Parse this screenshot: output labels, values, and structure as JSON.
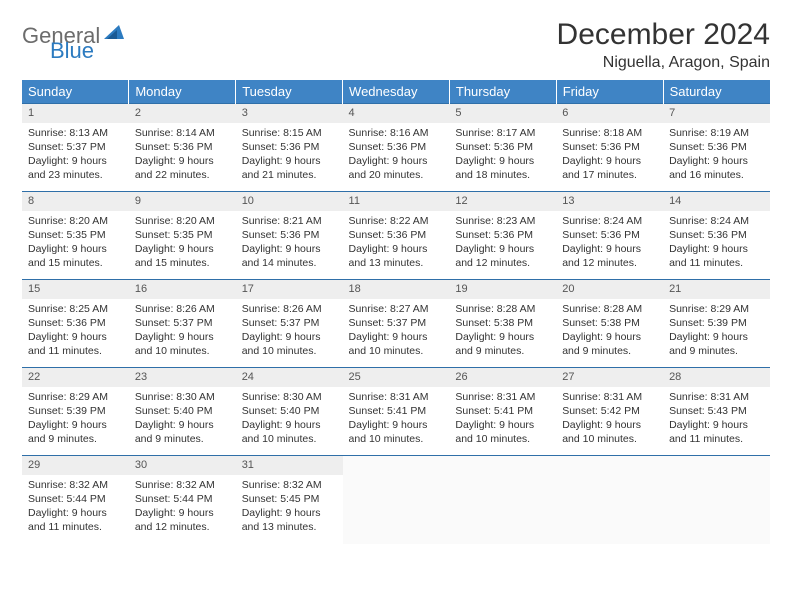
{
  "brand": {
    "part1": "General",
    "part2": "Blue"
  },
  "title": "December 2024",
  "location": "Niguella, Aragon, Spain",
  "colors": {
    "header_bg": "#3f84c5",
    "header_text": "#ffffff",
    "row_border": "#2f6fa8",
    "daynum_bg": "#eeeeee",
    "text": "#333333",
    "logo_gray": "#6c6c6c",
    "logo_blue": "#2c7bc0",
    "page_bg": "#ffffff"
  },
  "typography": {
    "title_fontsize": 30,
    "location_fontsize": 16,
    "dayhead_fontsize": 13,
    "cell_fontsize": 10.5
  },
  "week_headers": [
    "Sunday",
    "Monday",
    "Tuesday",
    "Wednesday",
    "Thursday",
    "Friday",
    "Saturday"
  ],
  "labels": {
    "sunrise": "Sunrise:",
    "sunset": "Sunset:",
    "daylight": "Daylight:"
  },
  "days": [
    {
      "n": 1,
      "sunrise": "8:13 AM",
      "sunset": "5:37 PM",
      "daylight": "9 hours and 23 minutes."
    },
    {
      "n": 2,
      "sunrise": "8:14 AM",
      "sunset": "5:36 PM",
      "daylight": "9 hours and 22 minutes."
    },
    {
      "n": 3,
      "sunrise": "8:15 AM",
      "sunset": "5:36 PM",
      "daylight": "9 hours and 21 minutes."
    },
    {
      "n": 4,
      "sunrise": "8:16 AM",
      "sunset": "5:36 PM",
      "daylight": "9 hours and 20 minutes."
    },
    {
      "n": 5,
      "sunrise": "8:17 AM",
      "sunset": "5:36 PM",
      "daylight": "9 hours and 18 minutes."
    },
    {
      "n": 6,
      "sunrise": "8:18 AM",
      "sunset": "5:36 PM",
      "daylight": "9 hours and 17 minutes."
    },
    {
      "n": 7,
      "sunrise": "8:19 AM",
      "sunset": "5:36 PM",
      "daylight": "9 hours and 16 minutes."
    },
    {
      "n": 8,
      "sunrise": "8:20 AM",
      "sunset": "5:35 PM",
      "daylight": "9 hours and 15 minutes."
    },
    {
      "n": 9,
      "sunrise": "8:20 AM",
      "sunset": "5:35 PM",
      "daylight": "9 hours and 15 minutes."
    },
    {
      "n": 10,
      "sunrise": "8:21 AM",
      "sunset": "5:36 PM",
      "daylight": "9 hours and 14 minutes."
    },
    {
      "n": 11,
      "sunrise": "8:22 AM",
      "sunset": "5:36 PM",
      "daylight": "9 hours and 13 minutes."
    },
    {
      "n": 12,
      "sunrise": "8:23 AM",
      "sunset": "5:36 PM",
      "daylight": "9 hours and 12 minutes."
    },
    {
      "n": 13,
      "sunrise": "8:24 AM",
      "sunset": "5:36 PM",
      "daylight": "9 hours and 12 minutes."
    },
    {
      "n": 14,
      "sunrise": "8:24 AM",
      "sunset": "5:36 PM",
      "daylight": "9 hours and 11 minutes."
    },
    {
      "n": 15,
      "sunrise": "8:25 AM",
      "sunset": "5:36 PM",
      "daylight": "9 hours and 11 minutes."
    },
    {
      "n": 16,
      "sunrise": "8:26 AM",
      "sunset": "5:37 PM",
      "daylight": "9 hours and 10 minutes."
    },
    {
      "n": 17,
      "sunrise": "8:26 AM",
      "sunset": "5:37 PM",
      "daylight": "9 hours and 10 minutes."
    },
    {
      "n": 18,
      "sunrise": "8:27 AM",
      "sunset": "5:37 PM",
      "daylight": "9 hours and 10 minutes."
    },
    {
      "n": 19,
      "sunrise": "8:28 AM",
      "sunset": "5:38 PM",
      "daylight": "9 hours and 9 minutes."
    },
    {
      "n": 20,
      "sunrise": "8:28 AM",
      "sunset": "5:38 PM",
      "daylight": "9 hours and 9 minutes."
    },
    {
      "n": 21,
      "sunrise": "8:29 AM",
      "sunset": "5:39 PM",
      "daylight": "9 hours and 9 minutes."
    },
    {
      "n": 22,
      "sunrise": "8:29 AM",
      "sunset": "5:39 PM",
      "daylight": "9 hours and 9 minutes."
    },
    {
      "n": 23,
      "sunrise": "8:30 AM",
      "sunset": "5:40 PM",
      "daylight": "9 hours and 9 minutes."
    },
    {
      "n": 24,
      "sunrise": "8:30 AM",
      "sunset": "5:40 PM",
      "daylight": "9 hours and 10 minutes."
    },
    {
      "n": 25,
      "sunrise": "8:31 AM",
      "sunset": "5:41 PM",
      "daylight": "9 hours and 10 minutes."
    },
    {
      "n": 26,
      "sunrise": "8:31 AM",
      "sunset": "5:41 PM",
      "daylight": "9 hours and 10 minutes."
    },
    {
      "n": 27,
      "sunrise": "8:31 AM",
      "sunset": "5:42 PM",
      "daylight": "9 hours and 10 minutes."
    },
    {
      "n": 28,
      "sunrise": "8:31 AM",
      "sunset": "5:43 PM",
      "daylight": "9 hours and 11 minutes."
    },
    {
      "n": 29,
      "sunrise": "8:32 AM",
      "sunset": "5:44 PM",
      "daylight": "9 hours and 11 minutes."
    },
    {
      "n": 30,
      "sunrise": "8:32 AM",
      "sunset": "5:44 PM",
      "daylight": "9 hours and 12 minutes."
    },
    {
      "n": 31,
      "sunrise": "8:32 AM",
      "sunset": "5:45 PM",
      "daylight": "9 hours and 13 minutes."
    }
  ],
  "layout": {
    "columns": 7,
    "rows": 5,
    "first_day_column": 0,
    "trailing_empty": 4
  }
}
